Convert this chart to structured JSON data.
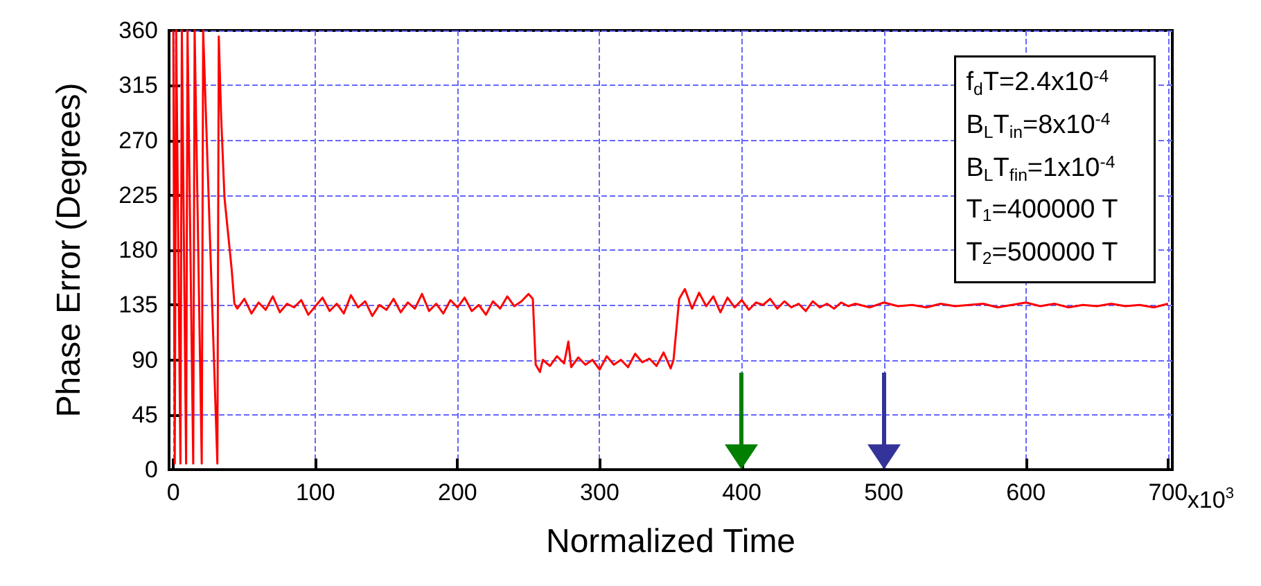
{
  "chart_data": {
    "type": "line",
    "xlabel": "Normalized Time",
    "ylabel": "Phase Error (Degrees)",
    "x": [
      0,
      1,
      2,
      5,
      6,
      9,
      10,
      14,
      15,
      20,
      21,
      31,
      32,
      33.6,
      36,
      41,
      43,
      45,
      50,
      55,
      60,
      65,
      70,
      75,
      80,
      85,
      90,
      95,
      100,
      105,
      110,
      115,
      120,
      125,
      130,
      135,
      140,
      145,
      150,
      155,
      160,
      165,
      170,
      175,
      180,
      185,
      190,
      195,
      200,
      205,
      210,
      215,
      220,
      225,
      230,
      235,
      240,
      245,
      250,
      253,
      255,
      258,
      260,
      265,
      270,
      275,
      278,
      280,
      285,
      290,
      295,
      300,
      305,
      310,
      315,
      320,
      325,
      330,
      335,
      340,
      345,
      350,
      352,
      356,
      360,
      365,
      370,
      375,
      380,
      385,
      390,
      395,
      400,
      405,
      410,
      415,
      420,
      425,
      430,
      435,
      440,
      445,
      450,
      455,
      460,
      465,
      470,
      475,
      480,
      490,
      500,
      510,
      520,
      530,
      540,
      550,
      560,
      570,
      580,
      590,
      600,
      610,
      620,
      630,
      640,
      650,
      660,
      670,
      680,
      690,
      700
    ],
    "series": [
      {
        "color": "#ff0000",
        "values": [
          360,
          5,
          360,
          5,
          360,
          5,
          360,
          5,
          360,
          5,
          360,
          5,
          355,
          291,
          223,
          165,
          136,
          132,
          140,
          128,
          137,
          131,
          142,
          129,
          136,
          133,
          139,
          127,
          134,
          141,
          130,
          136,
          128,
          143,
          133,
          138,
          126,
          135,
          131,
          140,
          129,
          137,
          132,
          144,
          130,
          136,
          128,
          139,
          133,
          141,
          130,
          135,
          127,
          138,
          132,
          142,
          134,
          138,
          144,
          140,
          86,
          80,
          90,
          85,
          93,
          87,
          105,
          84,
          92,
          86,
          90,
          82,
          93,
          86,
          90,
          84,
          95,
          88,
          91,
          85,
          96,
          83,
          90,
          140,
          148,
          132,
          145,
          134,
          142,
          129,
          141,
          133,
          139,
          131,
          137,
          135,
          140,
          132,
          138,
          133,
          136,
          130,
          138,
          133,
          136,
          132,
          137,
          134,
          136,
          133,
          137,
          134,
          135,
          133,
          136,
          134,
          135,
          136,
          133,
          135,
          137,
          134,
          136,
          133,
          135,
          134,
          136,
          134,
          135,
          133,
          136
        ]
      }
    ],
    "xlim": [
      -3,
      703
    ],
    "xticks": [
      0,
      100,
      200,
      300,
      400,
      500,
      600,
      700
    ],
    "ylim": [
      0,
      360
    ],
    "yticks": [
      0,
      45,
      90,
      135,
      180,
      225,
      270,
      315,
      360
    ],
    "grid": true,
    "marker": "none",
    "line_style": "solid",
    "ref_lines": [
      {
        "axis": "x",
        "value": 400,
        "color": "#007f00"
      },
      {
        "axis": "x",
        "value": 500,
        "color": "#333399"
      }
    ],
    "annotations": [
      "f$_{d}$T=2.4x10$^{-4}$",
      "B$_{L}$T$_{in}$=8x10$^{-4}$",
      "B$_{L}$T$_{fin}$=1x10$^{-4}$",
      "T$_{1}$=400000 T",
      "T$_{2}$=500000 T",
      "x10$^{3}$"
    ]
  }
}
